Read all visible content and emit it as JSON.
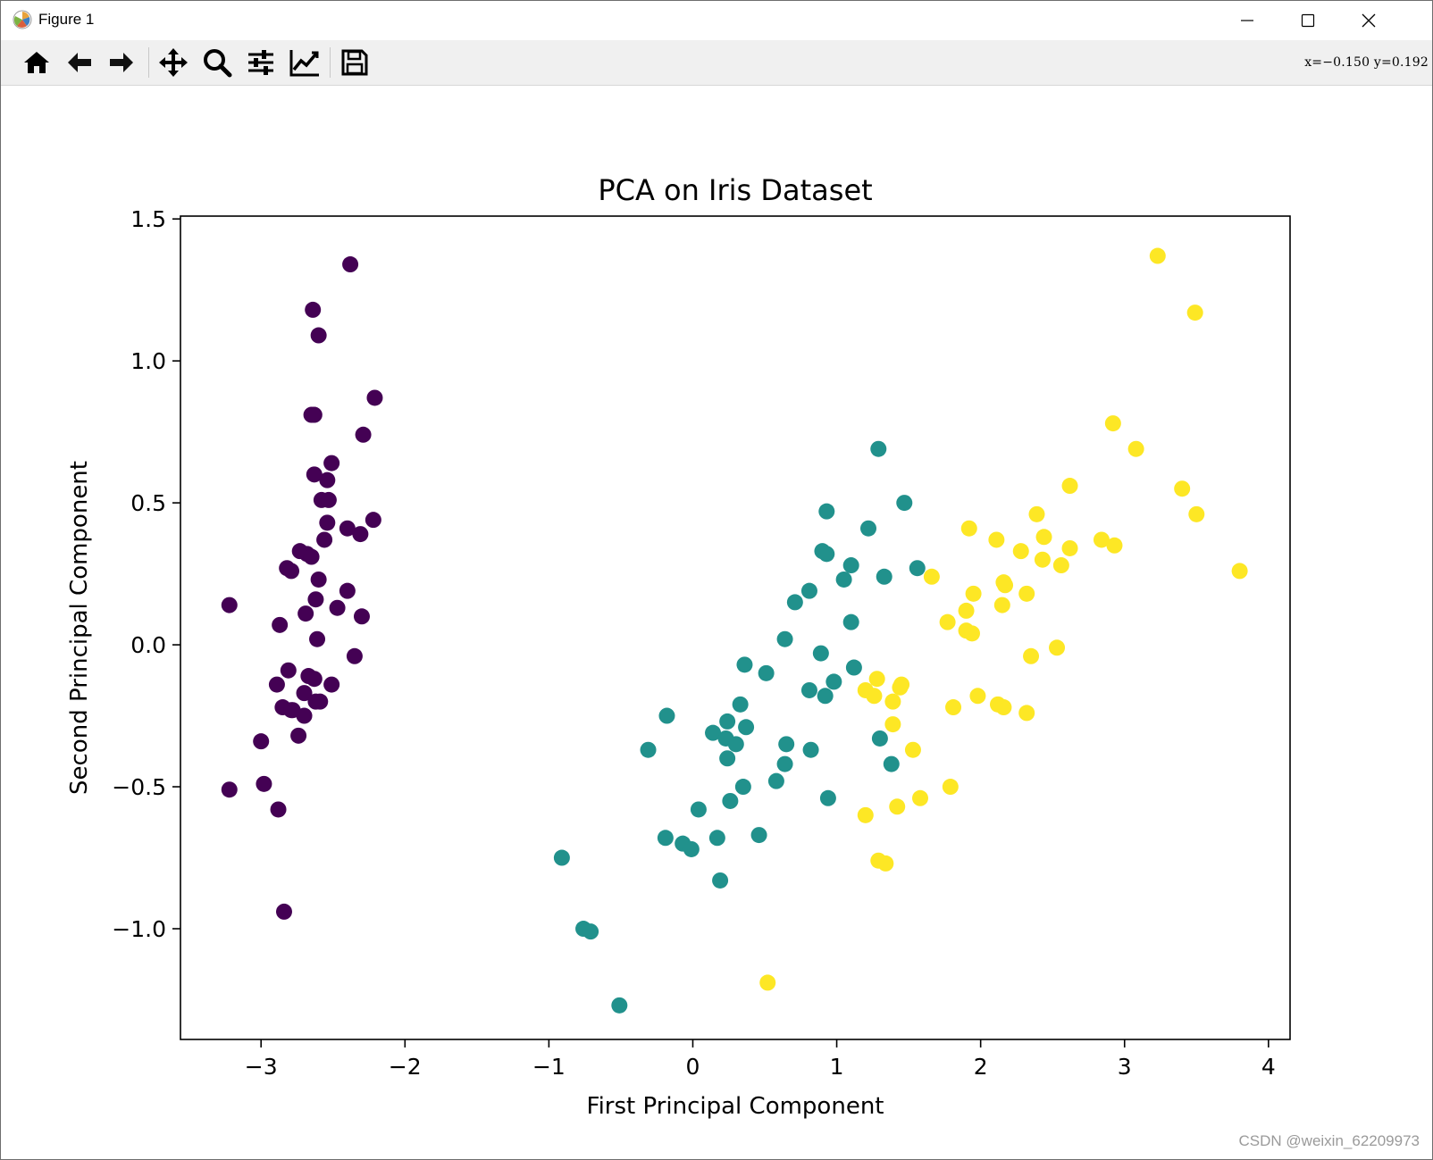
{
  "window": {
    "title": "Figure 1",
    "minimize_glyph": "—",
    "maximize_glyph": "☐",
    "close_glyph": "✕"
  },
  "toolbar": {
    "tools": [
      {
        "name": "home-icon"
      },
      {
        "name": "back-icon"
      },
      {
        "name": "forward-icon"
      },
      {
        "name": "pan-icon"
      },
      {
        "name": "zoom-icon"
      },
      {
        "name": "configure-subplots-icon"
      },
      {
        "name": "edit-axis-icon"
      },
      {
        "name": "save-icon"
      }
    ],
    "coordinate_readout": "x=−0.150  y=0.192"
  },
  "watermark": "CSDN @weixin_62209973",
  "colors": {
    "class_0": "#440154",
    "class_1": "#21918c",
    "class_2": "#fde725",
    "axis": "#000000"
  },
  "chart_data": {
    "type": "scatter",
    "title": "PCA on Iris Dataset",
    "xlabel": "First Principal Component",
    "ylabel": "Second Principal Component",
    "xlim": [
      -3.56,
      4.15
    ],
    "ylim": [
      -1.39,
      1.51
    ],
    "xticks": [
      -3,
      -2,
      -1,
      0,
      1,
      2,
      3,
      4
    ],
    "xtick_labels": [
      "−3",
      "−2",
      "−1",
      "0",
      "1",
      "2",
      "3",
      "4"
    ],
    "yticks": [
      -1.0,
      -0.5,
      0.0,
      0.5,
      1.0,
      1.5
    ],
    "ytick_labels": [
      "−1.0",
      "−0.5",
      "0.0",
      "0.5",
      "1.0",
      "1.5"
    ],
    "grid": false,
    "series": [
      {
        "name": "class_0",
        "color": "#440154",
        "points": [
          [
            -2.38,
            1.34
          ],
          [
            -2.64,
            1.18
          ],
          [
            -2.6,
            1.09
          ],
          [
            -2.65,
            0.81
          ],
          [
            -2.63,
            0.81
          ],
          [
            -2.21,
            0.87
          ],
          [
            -2.29,
            0.74
          ],
          [
            -2.51,
            0.64
          ],
          [
            -2.63,
            0.6
          ],
          [
            -2.54,
            0.58
          ],
          [
            -2.58,
            0.51
          ],
          [
            -2.53,
            0.51
          ],
          [
            -2.54,
            0.43
          ],
          [
            -2.22,
            0.44
          ],
          [
            -2.4,
            0.41
          ],
          [
            -2.31,
            0.39
          ],
          [
            -2.56,
            0.37
          ],
          [
            -2.73,
            0.33
          ],
          [
            -2.68,
            0.32
          ],
          [
            -2.65,
            0.31
          ],
          [
            -2.82,
            0.27
          ],
          [
            -2.79,
            0.26
          ],
          [
            -2.6,
            0.23
          ],
          [
            -2.4,
            0.19
          ],
          [
            -2.62,
            0.16
          ],
          [
            -2.47,
            0.13
          ],
          [
            -3.22,
            0.14
          ],
          [
            -2.69,
            0.11
          ],
          [
            -2.3,
            0.1
          ],
          [
            -2.87,
            0.07
          ],
          [
            -2.61,
            0.02
          ],
          [
            -2.35,
            -0.04
          ],
          [
            -2.81,
            -0.09
          ],
          [
            -2.67,
            -0.11
          ],
          [
            -2.63,
            -0.12
          ],
          [
            -2.89,
            -0.14
          ],
          [
            -2.51,
            -0.14
          ],
          [
            -2.7,
            -0.17
          ],
          [
            -2.62,
            -0.2
          ],
          [
            -2.59,
            -0.2
          ],
          [
            -2.85,
            -0.22
          ],
          [
            -2.78,
            -0.23
          ],
          [
            -2.7,
            -0.25
          ],
          [
            -2.74,
            -0.32
          ],
          [
            -3.0,
            -0.34
          ],
          [
            -2.98,
            -0.49
          ],
          [
            -3.22,
            -0.51
          ],
          [
            -2.88,
            -0.58
          ],
          [
            -2.84,
            -0.94
          ],
          [
            -2.79,
            -0.23
          ]
        ]
      },
      {
        "name": "class_1",
        "color": "#21918c",
        "points": [
          [
            1.29,
            0.69
          ],
          [
            1.47,
            0.5
          ],
          [
            0.93,
            0.47
          ],
          [
            1.22,
            0.41
          ],
          [
            0.9,
            0.33
          ],
          [
            0.93,
            0.32
          ],
          [
            1.1,
            0.28
          ],
          [
            1.56,
            0.27
          ],
          [
            1.33,
            0.24
          ],
          [
            1.05,
            0.23
          ],
          [
            0.81,
            0.19
          ],
          [
            0.71,
            0.15
          ],
          [
            1.1,
            0.08
          ],
          [
            0.64,
            0.02
          ],
          [
            0.89,
            -0.03
          ],
          [
            0.36,
            -0.07
          ],
          [
            1.12,
            -0.08
          ],
          [
            0.51,
            -0.1
          ],
          [
            0.98,
            -0.13
          ],
          [
            0.81,
            -0.16
          ],
          [
            0.92,
            -0.18
          ],
          [
            0.33,
            -0.21
          ],
          [
            -0.18,
            -0.25
          ],
          [
            0.24,
            -0.27
          ],
          [
            0.37,
            -0.29
          ],
          [
            0.14,
            -0.31
          ],
          [
            0.23,
            -0.33
          ],
          [
            0.3,
            -0.35
          ],
          [
            0.65,
            -0.35
          ],
          [
            -0.31,
            -0.37
          ],
          [
            0.82,
            -0.37
          ],
          [
            0.24,
            -0.4
          ],
          [
            0.64,
            -0.42
          ],
          [
            1.38,
            -0.42
          ],
          [
            1.3,
            -0.33
          ],
          [
            0.35,
            -0.5
          ],
          [
            0.58,
            -0.48
          ],
          [
            0.26,
            -0.55
          ],
          [
            0.94,
            -0.54
          ],
          [
            0.04,
            -0.58
          ],
          [
            0.46,
            -0.67
          ],
          [
            -0.19,
            -0.68
          ],
          [
            0.17,
            -0.68
          ],
          [
            -0.07,
            -0.7
          ],
          [
            -0.01,
            -0.72
          ],
          [
            0.19,
            -0.83
          ],
          [
            -0.91,
            -0.75
          ],
          [
            -0.76,
            -1.0
          ],
          [
            -0.71,
            -1.01
          ],
          [
            -0.51,
            -1.27
          ]
        ]
      },
      {
        "name": "class_2",
        "color": "#fde725",
        "points": [
          [
            3.23,
            1.37
          ],
          [
            3.49,
            1.17
          ],
          [
            2.92,
            0.78
          ],
          [
            3.08,
            0.69
          ],
          [
            2.62,
            0.56
          ],
          [
            3.4,
            0.55
          ],
          [
            3.5,
            0.46
          ],
          [
            2.39,
            0.46
          ],
          [
            1.92,
            0.41
          ],
          [
            2.11,
            0.37
          ],
          [
            2.44,
            0.38
          ],
          [
            2.84,
            0.37
          ],
          [
            2.93,
            0.35
          ],
          [
            2.62,
            0.34
          ],
          [
            2.28,
            0.33
          ],
          [
            2.43,
            0.3
          ],
          [
            2.56,
            0.28
          ],
          [
            3.8,
            0.26
          ],
          [
            1.66,
            0.24
          ],
          [
            2.17,
            0.21
          ],
          [
            1.95,
            0.18
          ],
          [
            2.32,
            0.18
          ],
          [
            2.15,
            0.14
          ],
          [
            1.9,
            0.12
          ],
          [
            1.77,
            0.08
          ],
          [
            1.9,
            0.05
          ],
          [
            1.94,
            0.04
          ],
          [
            2.35,
            -0.04
          ],
          [
            2.53,
            -0.01
          ],
          [
            1.28,
            -0.12
          ],
          [
            1.45,
            -0.14
          ],
          [
            1.2,
            -0.16
          ],
          [
            1.26,
            -0.18
          ],
          [
            1.98,
            -0.18
          ],
          [
            1.39,
            -0.2
          ],
          [
            2.12,
            -0.21
          ],
          [
            2.16,
            -0.22
          ],
          [
            1.81,
            -0.22
          ],
          [
            2.32,
            -0.24
          ],
          [
            1.39,
            -0.28
          ],
          [
            1.53,
            -0.37
          ],
          [
            1.79,
            -0.5
          ],
          [
            1.58,
            -0.54
          ],
          [
            1.42,
            -0.57
          ],
          [
            1.2,
            -0.6
          ],
          [
            1.29,
            -0.76
          ],
          [
            1.34,
            -0.77
          ],
          [
            0.52,
            -1.19
          ],
          [
            1.44,
            -0.15
          ],
          [
            2.16,
            0.22
          ]
        ]
      }
    ]
  }
}
